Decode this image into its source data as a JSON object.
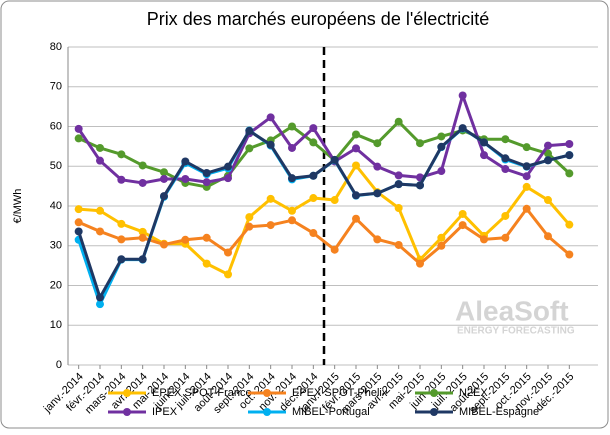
{
  "chart_data": {
    "type": "line",
    "title": "Prix des marchés européens de l'électricité",
    "y_label": "€/MWh",
    "annotations": [
      "AleaSoft",
      "ENERGY FORECASTING"
    ],
    "categories": [
      "janv.-2014",
      "févr.-2014",
      "mars-2014",
      "avr.-2014",
      "mai-2014",
      "juin-2014",
      "juil.-2014",
      "août-2014",
      "sept.-2014",
      "oct.-2014",
      "nov.-2014",
      "déc.-2014",
      "janv.-2015",
      "févr.-2015",
      "mars-2015",
      "avr.-2015",
      "mai-2015",
      "juin-2015",
      "juil.-2015",
      "août-2015",
      "sept.-2015",
      "oct.-2015",
      "nov.-2015",
      "déc.-2015"
    ],
    "ylim": [
      0,
      80
    ],
    "yticks": [
      0,
      10,
      20,
      30,
      40,
      50,
      60,
      70,
      80
    ],
    "grid": true,
    "series": [
      {
        "name": "EPEX SPOT-France",
        "color": "#FFC000",
        "values": [
          39.2,
          38.8,
          35.5,
          33.5,
          30.5,
          30.5,
          25.5,
          22.8,
          37.2,
          41.8,
          38.8,
          42,
          41.5,
          50.2,
          43.5,
          39.5,
          26.5,
          32,
          38,
          32.5,
          37.5,
          44.8,
          41.5,
          35.3
        ]
      },
      {
        "name": "EPEX SPOT-Phelix",
        "color": "#F5821F",
        "values": [
          35.9,
          33.6,
          31.6,
          32,
          30.3,
          31.5,
          32,
          28.3,
          34.8,
          35.2,
          36.4,
          33.2,
          29,
          36.8,
          31.6,
          30.2,
          25.5,
          30,
          35.2,
          31.6,
          32,
          39.3,
          32.4,
          27.8
        ]
      },
      {
        "name": "N2EX",
        "color": "#549A2C",
        "values": [
          57,
          54.6,
          53,
          50.2,
          48.5,
          45.8,
          44.8,
          47.6,
          54.5,
          56.5,
          60,
          56,
          51.5,
          58,
          55.8,
          61.2,
          55.8,
          57.5,
          59,
          56.8,
          56.8,
          54.8,
          53.2,
          48.2
        ]
      },
      {
        "name": "IPEX",
        "color": "#7030A0",
        "values": [
          59.4,
          51.4,
          46.6,
          45.8,
          46.8,
          46.8,
          46,
          47,
          58.3,
          62.3,
          54.6,
          59.6,
          51.2,
          54.5,
          49.9,
          47.7,
          47.2,
          48.8,
          67.8,
          52.8,
          49.3,
          47.5,
          55.2,
          55.6
        ]
      },
      {
        "name": "MIBEL-Portugal",
        "color": "#00B0F0",
        "values": [
          31.5,
          15.3,
          26.5,
          26.5,
          42.3,
          50.8,
          48,
          49.5,
          59,
          55.2,
          46.7,
          47.6,
          51.5,
          42.6,
          43.2,
          45.5,
          45.2,
          54.8,
          59.5,
          56,
          51.7,
          49.9,
          51.5,
          52.8
        ]
      },
      {
        "name": "MIBEL-Espagne",
        "color": "#1F3864",
        "values": [
          33.6,
          17,
          26.6,
          26.6,
          42.5,
          51.2,
          48.3,
          49.9,
          58.9,
          55.4,
          47,
          47.6,
          51.6,
          42.7,
          43.2,
          45.5,
          45.2,
          54.9,
          59.6,
          56,
          52,
          50,
          51.5,
          52.8
        ]
      }
    ]
  }
}
